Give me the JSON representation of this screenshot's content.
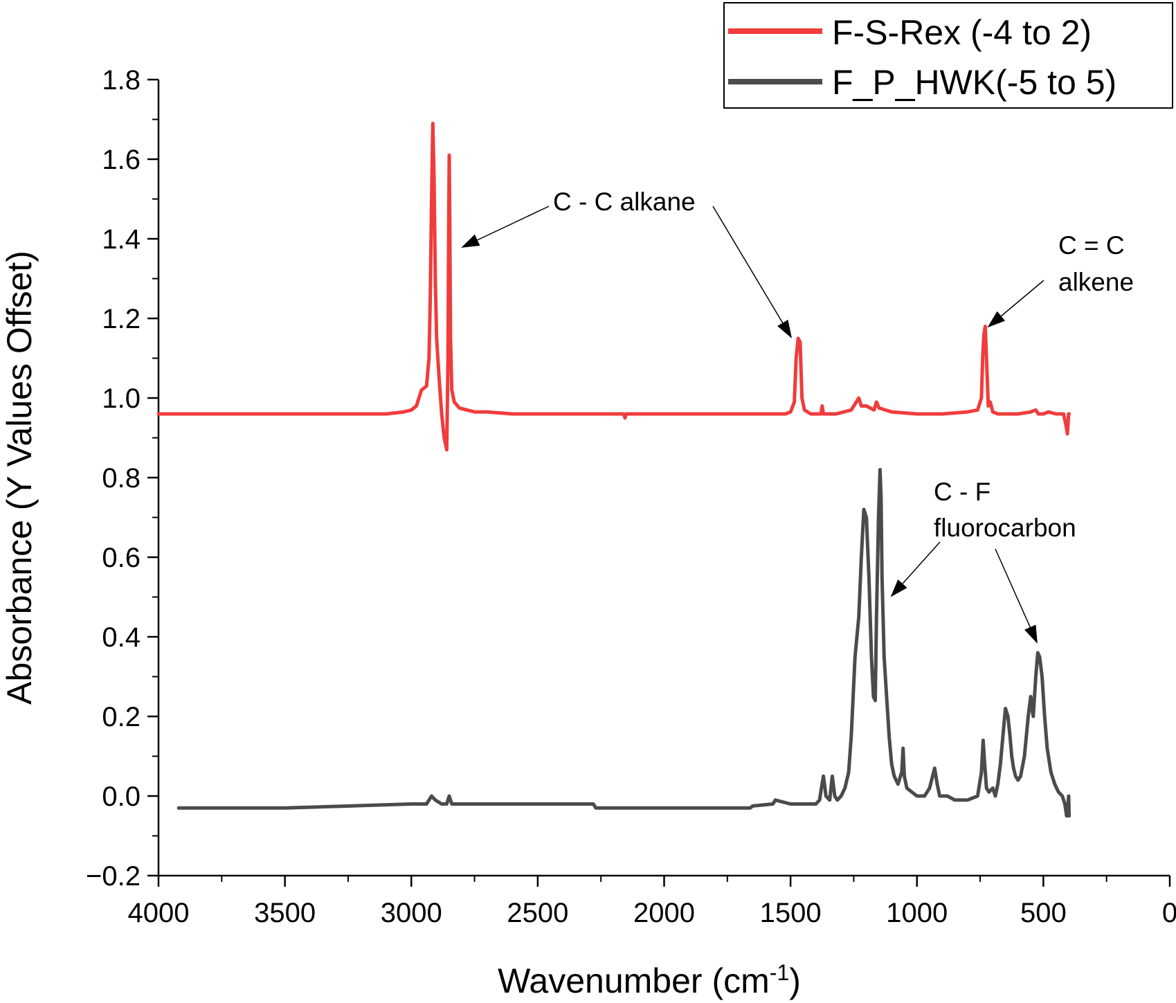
{
  "chart_data": {
    "type": "line",
    "title": "",
    "xlabel": "Wavenumber (cm",
    "xlabel_sup": "-1",
    "xlabel_end": ")",
    "ylabel": "Absorbance (Y Values Offset)",
    "xlim": [
      4000,
      0
    ],
    "ylim": [
      -0.2,
      1.8
    ],
    "x_ticks": [
      4000,
      3500,
      3000,
      2500,
      2000,
      1500,
      1000,
      500,
      0
    ],
    "x_tick_labels": [
      "4000",
      "3500",
      "3000",
      "2500",
      "2000",
      "1500",
      "1000",
      "500",
      "0"
    ],
    "y_ticks": [
      -0.2,
      0.0,
      0.2,
      0.4,
      0.6,
      0.8,
      1.0,
      1.2,
      1.4,
      1.6,
      1.8
    ],
    "y_tick_labels": [
      "−0.2",
      "0.0",
      "0.2",
      "0.4",
      "0.6",
      "0.8",
      "1.0",
      "1.2",
      "1.4",
      "1.6",
      "1.8"
    ],
    "grid": false,
    "legend_position": "top-right",
    "series": [
      {
        "name": "F-S-Rex (-4 to 2)",
        "color": "#f03c3c",
        "x": [
          4000,
          3100,
          3030,
          3000,
          2980,
          2960,
          2940,
          2930,
          2925,
          2920,
          2915,
          2910,
          2905,
          2900,
          2890,
          2880,
          2870,
          2860,
          2855,
          2852,
          2850,
          2848,
          2845,
          2840,
          2830,
          2810,
          2780,
          2750,
          2700,
          2600,
          2400,
          2160,
          2155,
          2150,
          1800,
          1600,
          1520,
          1500,
          1485,
          1478,
          1470,
          1462,
          1455,
          1445,
          1420,
          1380,
          1375,
          1370,
          1320,
          1260,
          1240,
          1230,
          1220,
          1200,
          1170,
          1160,
          1150,
          1100,
          1000,
          900,
          800,
          760,
          745,
          740,
          735,
          730,
          725,
          718,
          710,
          700,
          680,
          650,
          600,
          550,
          530,
          520,
          500,
          480,
          450,
          420,
          410,
          405,
          400,
          398
        ],
        "y": [
          0.96,
          0.96,
          0.965,
          0.97,
          0.98,
          1.02,
          1.03,
          1.1,
          1.25,
          1.5,
          1.69,
          1.55,
          1.3,
          1.15,
          1.05,
          0.96,
          0.9,
          0.87,
          1.1,
          1.45,
          1.61,
          1.45,
          1.15,
          1.02,
          0.99,
          0.975,
          0.97,
          0.965,
          0.965,
          0.96,
          0.96,
          0.96,
          0.95,
          0.96,
          0.96,
          0.96,
          0.96,
          0.965,
          0.99,
          1.1,
          1.15,
          1.14,
          1.0,
          0.97,
          0.96,
          0.96,
          0.98,
          0.96,
          0.96,
          0.97,
          0.99,
          1.0,
          0.98,
          0.98,
          0.97,
          0.99,
          0.975,
          0.965,
          0.96,
          0.96,
          0.965,
          0.97,
          1.0,
          1.1,
          1.16,
          1.18,
          1.1,
          0.98,
          0.99,
          0.965,
          0.96,
          0.96,
          0.96,
          0.965,
          0.97,
          0.96,
          0.96,
          0.965,
          0.96,
          0.96,
          0.93,
          0.91,
          0.96,
          0.96
        ]
      },
      {
        "name": "F_P_HWK(-5 to 5)",
        "color": "#4b4b4b",
        "x": [
          3920,
          3500,
          3000,
          2940,
          2920,
          2905,
          2880,
          2860,
          2850,
          2840,
          2800,
          2600,
          2280,
          2270,
          1800,
          1660,
          1650,
          1570,
          1560,
          1500,
          1420,
          1400,
          1385,
          1378,
          1370,
          1360,
          1345,
          1335,
          1325,
          1315,
          1300,
          1285,
          1270,
          1260,
          1245,
          1230,
          1220,
          1210,
          1200,
          1190,
          1180,
          1172,
          1165,
          1160,
          1152,
          1146,
          1142,
          1138,
          1130,
          1120,
          1110,
          1100,
          1090,
          1075,
          1060,
          1055,
          1050,
          1040,
          1020,
          1000,
          970,
          950,
          930,
          920,
          910,
          900,
          880,
          850,
          800,
          760,
          745,
          738,
          732,
          725,
          715,
          700,
          690,
          680,
          670,
          660,
          650,
          640,
          632,
          625,
          618,
          610,
          600,
          590,
          575,
          560,
          550,
          545,
          540,
          530,
          522,
          515,
          505,
          495,
          485,
          470,
          455,
          440,
          425,
          415,
          408,
          404,
          400,
          398
        ],
        "y": [
          -0.03,
          -0.03,
          -0.02,
          -0.02,
          0.0,
          -0.01,
          -0.02,
          -0.02,
          0.0,
          -0.02,
          -0.02,
          -0.02,
          -0.02,
          -0.03,
          -0.03,
          -0.03,
          -0.025,
          -0.02,
          -0.01,
          -0.02,
          -0.02,
          -0.02,
          -0.01,
          0.02,
          0.05,
          0.0,
          -0.01,
          0.05,
          0.0,
          -0.01,
          0.0,
          0.02,
          0.06,
          0.15,
          0.35,
          0.45,
          0.6,
          0.72,
          0.7,
          0.55,
          0.35,
          0.25,
          0.24,
          0.45,
          0.7,
          0.82,
          0.75,
          0.55,
          0.35,
          0.25,
          0.15,
          0.08,
          0.05,
          0.03,
          0.06,
          0.12,
          0.05,
          0.02,
          0.01,
          0.0,
          0.0,
          0.02,
          0.07,
          0.03,
          0.0,
          0.0,
          0.0,
          -0.01,
          -0.01,
          0.0,
          0.06,
          0.14,
          0.08,
          0.02,
          0.01,
          0.02,
          0.0,
          0.03,
          0.08,
          0.15,
          0.22,
          0.2,
          0.15,
          0.1,
          0.07,
          0.05,
          0.04,
          0.05,
          0.1,
          0.2,
          0.25,
          0.22,
          0.2,
          0.3,
          0.36,
          0.35,
          0.3,
          0.2,
          0.12,
          0.06,
          0.03,
          0.01,
          0.0,
          -0.02,
          -0.05,
          -0.03,
          0.0,
          -0.05
        ]
      }
    ],
    "annotations": [
      {
        "lines": [
          "C - C alkane"
        ]
      },
      {
        "lines": [
          "C = C",
          "alkene"
        ]
      },
      {
        "lines": [
          "C - F",
          "fluorocarbon"
        ]
      }
    ]
  }
}
